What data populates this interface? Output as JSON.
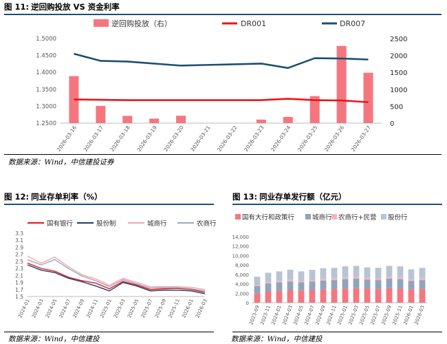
{
  "figures": [
    {
      "label": "图 11:",
      "title": "逆回购投放 VS 资金利率",
      "source": "数据来源：Wind，中信建投证券"
    },
    {
      "label": "图 12:",
      "title": "同业存单利率（%）",
      "source": "数据来源：Wind，中信建投"
    },
    {
      "label": "图 13:",
      "title": "同业存单发行额（亿元）",
      "source": "数据来源：Wind，中信建投"
    }
  ],
  "colors": {
    "pink": "#f4777f",
    "red": "#e8141b",
    "navy": "#1b4f72",
    "rule": "#1f4e79"
  },
  "chart_data": [
    {
      "type": "bar",
      "categories": [
        "2026-03-16",
        "2026-03-17",
        "2026-03-18",
        "2026-03-19",
        "2026-03-20",
        "2026-03-21",
        "2026-03-22",
        "2026-03-23",
        "2026-03-24",
        "2026-03-25",
        "2026-03-26",
        "2026-03-27"
      ],
      "series": [
        {
          "name": "逆回购投放（右）",
          "kind": "bar",
          "axis": "right",
          "color": "#f4777f",
          "values": [
            1390,
            510,
            215,
            135,
            220,
            0,
            0,
            105,
            185,
            800,
            2280,
            1490
          ]
        },
        {
          "name": "DR001",
          "kind": "line",
          "axis": "left",
          "color": "#e8141b",
          "values": [
            1.32,
            1.319,
            1.318,
            1.318,
            1.318,
            1.318,
            1.318,
            1.318,
            1.322,
            1.318,
            1.317,
            1.312
          ]
        },
        {
          "name": "DR007",
          "kind": "line",
          "axis": "left",
          "color": "#1b4f72",
          "values": [
            1.455,
            1.434,
            1.432,
            1.426,
            1.42,
            1.422,
            1.424,
            1.426,
            1.413,
            1.442,
            1.441,
            1.438
          ]
        }
      ],
      "left_ticks": [
        "1.2500",
        "1.3000",
        "1.3500",
        "1.4000",
        "1.4500",
        "1.5000"
      ],
      "right_ticks": [
        "0",
        "500",
        "1000",
        "1500",
        "2000",
        "2500"
      ],
      "ylim_left": [
        1.25,
        1.5
      ],
      "ylim_right": [
        0,
        2500
      ],
      "legend_position": "top"
    },
    {
      "type": "line",
      "x": [
        "2024-01",
        "2024-03",
        "2024-05",
        "2024-07",
        "2024-09",
        "2024-11",
        "2025-01",
        "2025-03",
        "2025-05",
        "2025-07",
        "2025-09",
        "2025-11",
        "2026-01",
        "2026-03"
      ],
      "y_ticks": [
        "1.5",
        "1.7",
        "1.9",
        "2.1",
        "2.3",
        "2.5",
        "2.7",
        "2.9",
        "3.1",
        "3.3"
      ],
      "ylim": [
        1.5,
        3.3
      ],
      "series": [
        {
          "name": "国有银行",
          "color": "#e8141b",
          "values": [
            2.45,
            2.3,
            2.22,
            2.05,
            1.95,
            1.88,
            1.72,
            1.93,
            1.83,
            1.7,
            1.72,
            1.73,
            1.7,
            1.62
          ]
        },
        {
          "name": "股份制",
          "color": "#1b3a6b",
          "values": [
            2.4,
            2.25,
            2.18,
            2.02,
            1.92,
            1.8,
            1.66,
            1.9,
            1.8,
            1.66,
            1.68,
            1.68,
            1.66,
            1.58
          ]
        },
        {
          "name": "城商行",
          "color": "#f4a6ad",
          "values": [
            2.65,
            2.45,
            2.62,
            2.35,
            2.12,
            2.0,
            1.82,
            2.02,
            1.9,
            1.78,
            1.78,
            1.78,
            1.76,
            1.7
          ]
        },
        {
          "name": "农商行",
          "color": "#9aa8bc",
          "values": [
            2.55,
            2.4,
            2.55,
            2.3,
            2.08,
            1.95,
            1.78,
            1.98,
            1.86,
            1.74,
            1.75,
            1.75,
            1.72,
            1.66
          ]
        }
      ],
      "legend_position": "top"
    },
    {
      "type": "bar",
      "stacked": true,
      "x": [
        "2023-09",
        "2023-11",
        "2024-01",
        "2024-03",
        "2024-05",
        "2024-07",
        "2024-09",
        "2024-11",
        "2025-01",
        "2025-03",
        "2025-05",
        "2025-07",
        "2025-09",
        "2025-11",
        "2026-01",
        "2026-03"
      ],
      "y_ticks": [
        "0",
        "2,000",
        "4,000",
        "6,000",
        "8,000",
        "10,000",
        "12,000",
        "14,000"
      ],
      "ylim": [
        0,
        14000
      ],
      "series": [
        {
          "name": "国有大行和政策行",
          "color": "#f4777f",
          "values": [
            2000,
            2400,
            2500,
            2700,
            2600,
            2700,
            2800,
            2900,
            3000,
            3100,
            3000,
            2900,
            3100,
            3000,
            2800,
            2900
          ]
        },
        {
          "name": "城商行",
          "color": "#8fa4bd",
          "values": [
            1500,
            1700,
            1800,
            1800,
            1700,
            1800,
            1900,
            1900,
            2000,
            2000,
            1900,
            1900,
            2000,
            2000,
            1800,
            1900
          ]
        },
        {
          "name": "农商行+民营",
          "color": "#f7b3b8",
          "values": [
            300,
            350,
            350,
            400,
            350,
            380,
            400,
            400,
            420,
            420,
            400,
            400,
            420,
            420,
            380,
            400
          ]
        },
        {
          "name": "股份行",
          "color": "#b7c4d4",
          "values": [
            1700,
            1900,
            2000,
            2100,
            2000,
            2100,
            2200,
            2200,
            2300,
            2300,
            2200,
            2200,
            2300,
            2300,
            2100,
            2200
          ]
        }
      ],
      "legend_position": "top"
    }
  ]
}
